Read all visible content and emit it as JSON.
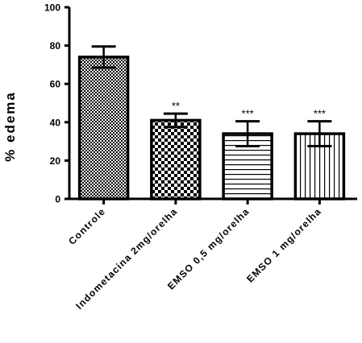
{
  "chart_data": {
    "type": "bar",
    "categories": [
      "Controle",
      "Indometacina 2mg/orelha",
      "EMSO 0,5 mg/orelha",
      "EMSO 1 mg/orelha"
    ],
    "values": [
      74,
      41,
      34,
      34
    ],
    "error": [
      5.5,
      3.5,
      6.5,
      6.5
    ],
    "annotations": [
      "",
      "**",
      "***",
      "***"
    ],
    "patterns": [
      "checker-fine",
      "checker-coarse",
      "horizontal-lines",
      "vertical-lines"
    ],
    "ylabel": "% edema",
    "xlabel": "",
    "title": "",
    "ylim": [
      0,
      100
    ],
    "yticks": [
      0,
      20,
      40,
      60,
      80,
      100
    ],
    "grid": false
  }
}
